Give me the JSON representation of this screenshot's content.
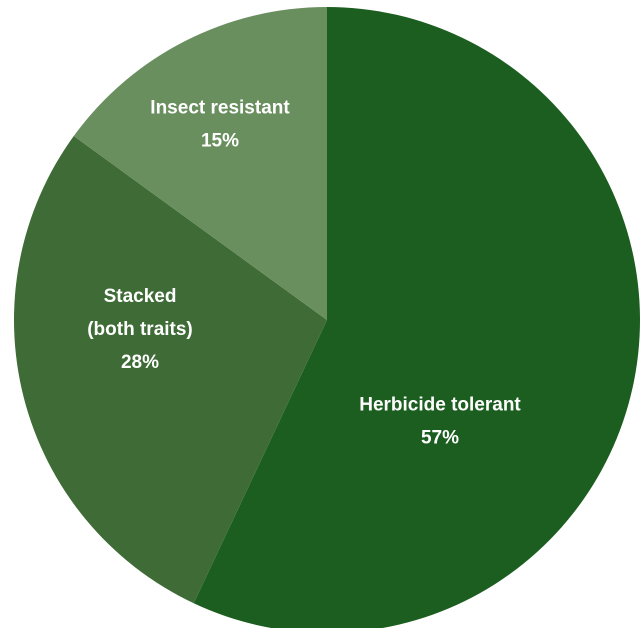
{
  "chart_data": {
    "type": "pie",
    "title": "",
    "slices": [
      {
        "label": "Herbicide tolerant",
        "value": 57,
        "value_label": "57%",
        "color": "#1b5e1f"
      },
      {
        "label": "Stacked (both traits)",
        "label_lines": [
          "Stacked",
          "(both traits)"
        ],
        "value": 28,
        "value_label": "28%",
        "color": "#3e6b36"
      },
      {
        "label": "Insect resistant",
        "value": 15,
        "value_label": "15%",
        "color": "#6a8f5f"
      }
    ],
    "legend": "none",
    "start_angle": "12 o'clock, clockwise"
  }
}
